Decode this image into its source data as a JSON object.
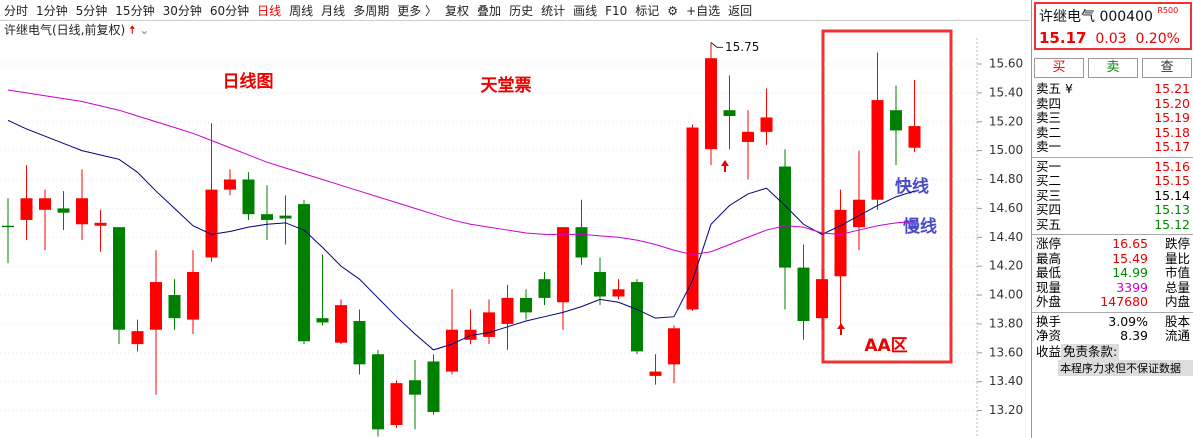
{
  "toolbar": {
    "periods": [
      "分时",
      "1分钟",
      "5分钟",
      "15分钟",
      "30分钟",
      "60分钟",
      "日线",
      "周线",
      "月线",
      "多周期",
      "更多 〉"
    ],
    "tools": [
      "复权",
      "叠加",
      "历史",
      "统计",
      "画线",
      "F10",
      "标记",
      "⚙",
      "+自选",
      "返回"
    ]
  },
  "chart_header": "许继电气(日线,前复权)",
  "chart_data": {
    "type": "candlestick",
    "title": "日线图",
    "annotations": [
      "天堂票",
      "快线",
      "慢线",
      "AA区"
    ],
    "max_label": "15.75",
    "up_color": "#ff0000",
    "down_color": "#008000",
    "open": [
      14.48,
      14.52,
      14.59,
      14.6,
      14.49,
      14.48,
      14.47,
      13.66,
      13.76,
      14.0,
      13.83,
      14.26,
      14.73,
      14.8,
      14.56,
      14.55,
      14.63,
      13.84,
      13.67,
      13.82,
      13.59,
      13.1,
      13.41,
      13.54,
      13.47,
      13.69,
      13.71,
      13.8,
      13.98,
      14.11,
      13.95,
      14.47,
      14.16,
      13.99,
      14.09,
      13.44,
      13.52,
      13.9,
      15.01,
      15.28,
      15.06,
      15.13,
      14.89,
      14.19,
      13.84,
      14.13,
      14.47,
      14.66,
      15.28,
      15.02
    ],
    "high": [
      14.67,
      14.9,
      14.73,
      14.72,
      14.87,
      14.59,
      14.47,
      13.83,
      14.31,
      14.11,
      14.31,
      15.19,
      14.87,
      14.85,
      14.76,
      14.69,
      14.66,
      14.28,
      13.97,
      13.9,
      13.62,
      13.41,
      13.55,
      13.59,
      14.04,
      13.9,
      13.97,
      14.07,
      14.04,
      14.16,
      14.47,
      14.66,
      14.26,
      14.11,
      14.11,
      13.59,
      13.79,
      15.18,
      15.75,
      15.52,
      15.28,
      15.43,
      15.01,
      14.35,
      14.18,
      14.73,
      15.0,
      15.68,
      15.45,
      15.49
    ],
    "low": [
      14.22,
      14.38,
      14.31,
      14.45,
      14.38,
      14.3,
      13.66,
      13.61,
      13.31,
      13.76,
      13.73,
      14.23,
      14.69,
      14.52,
      14.38,
      14.35,
      13.66,
      13.79,
      13.66,
      13.45,
      13.02,
      13.08,
      13.07,
      13.17,
      13.45,
      13.66,
      13.66,
      13.62,
      13.83,
      13.93,
      13.76,
      14.21,
      13.93,
      13.97,
      13.59,
      13.38,
      13.39,
      13.89,
      14.9,
      15.01,
      14.8,
      15.04,
      13.9,
      13.69,
      13.76,
      13.76,
      14.31,
      14.59,
      14.9,
      14.99
    ],
    "close": [
      14.47,
      14.67,
      14.67,
      14.57,
      14.67,
      14.5,
      13.76,
      13.75,
      14.09,
      13.84,
      14.16,
      14.73,
      14.8,
      14.56,
      14.52,
      14.53,
      13.68,
      13.81,
      13.93,
      13.52,
      13.07,
      13.39,
      13.31,
      13.19,
      13.76,
      13.76,
      13.88,
      13.98,
      13.88,
      13.98,
      14.47,
      14.26,
      13.99,
      14.04,
      13.61,
      13.47,
      13.77,
      15.16,
      15.64,
      15.24,
      15.13,
      15.23,
      14.19,
      13.82,
      14.11,
      14.59,
      14.66,
      15.35,
      15.14,
      15.17
    ],
    "lines": [
      {
        "color": "#000080",
        "values": [
          15.21,
          15.15,
          15.1,
          15.05,
          15.0,
          14.97,
          14.94,
          14.85,
          14.72,
          14.6,
          14.48,
          14.42,
          14.44,
          14.47,
          14.49,
          14.5,
          14.45,
          14.33,
          14.2,
          14.11,
          13.98,
          13.85,
          13.73,
          13.62,
          13.66,
          13.72,
          13.74,
          13.78,
          13.82,
          13.85,
          13.88,
          13.92,
          13.97,
          13.95,
          13.9,
          13.84,
          13.85,
          14.1,
          14.49,
          14.62,
          14.7,
          14.74,
          14.62,
          14.49,
          14.42,
          14.48,
          14.55,
          14.62,
          14.68,
          14.72
        ]
      },
      {
        "color": "#cc00cc",
        "values": [
          15.42,
          15.4,
          15.38,
          15.36,
          15.34,
          15.31,
          15.28,
          15.24,
          15.2,
          15.16,
          15.12,
          15.07,
          15.02,
          14.97,
          14.92,
          14.88,
          14.84,
          14.8,
          14.76,
          14.72,
          14.68,
          14.64,
          14.6,
          14.56,
          14.52,
          14.49,
          14.47,
          14.45,
          14.43,
          14.42,
          14.42,
          14.42,
          14.41,
          14.4,
          14.38,
          14.35,
          14.31,
          14.28,
          14.3,
          14.35,
          14.4,
          14.45,
          14.48,
          14.47,
          14.43,
          14.42,
          14.45,
          14.48,
          14.5,
          14.51
        ]
      }
    ],
    "ylim": [
      13.01,
      15.78
    ],
    "yticks": [
      {
        "value": 13.2,
        "label": "13.20"
      },
      {
        "value": 13.4,
        "label": "13.40"
      },
      {
        "value": 13.6,
        "label": "13.60"
      },
      {
        "value": 13.8,
        "label": "13.80"
      },
      {
        "value": 14,
        "label": "14.00"
      },
      {
        "value": 14.2,
        "label": "14.20"
      },
      {
        "value": 14.4,
        "label": "14.40"
      },
      {
        "value": 14.6,
        "label": "14.60"
      },
      {
        "value": 14.8,
        "label": "14.80"
      },
      {
        "value": 15,
        "label": "15.00"
      },
      {
        "value": 15.2,
        "label": "15.20"
      },
      {
        "value": 15.4,
        "label": "15.40"
      },
      {
        "value": 15.6,
        "label": "15.60"
      }
    ],
    "grid": true
  },
  "quote": {
    "name": "许继电气 000400",
    "tag": "R500",
    "price": "15.17",
    "change": "0.03",
    "pct": "0.20%",
    "currency": "¥"
  },
  "buttons": [
    "买",
    "卖",
    "查"
  ],
  "asks": [
    [
      "卖五",
      "15.21"
    ],
    [
      "卖四",
      "15.20"
    ],
    [
      "卖三",
      "15.19"
    ],
    [
      "卖二",
      "15.18"
    ],
    [
      "卖一",
      "15.17"
    ]
  ],
  "bids": [
    [
      "买一",
      "15.16"
    ],
    [
      "买二",
      "15.15"
    ],
    [
      "买三",
      "15.14"
    ],
    [
      "买四",
      "15.13"
    ],
    [
      "买五",
      "15.12"
    ]
  ],
  "stats": [
    [
      "涨停",
      "16.65",
      "跌停"
    ],
    [
      "最高",
      "15.49",
      "量比"
    ],
    [
      "最低",
      "14.99",
      "市值"
    ],
    [
      "现量",
      "3399",
      "总量"
    ],
    [
      "外盘",
      "147680",
      "内盘"
    ]
  ],
  "stats2": [
    [
      "换手",
      "3.09%",
      "股本"
    ],
    [
      "净资",
      "8.39",
      "流通"
    ]
  ],
  "disclaimer": {
    "label": "收益",
    "title": "免责条款:",
    "text": "本程序力求但不保证数据"
  }
}
